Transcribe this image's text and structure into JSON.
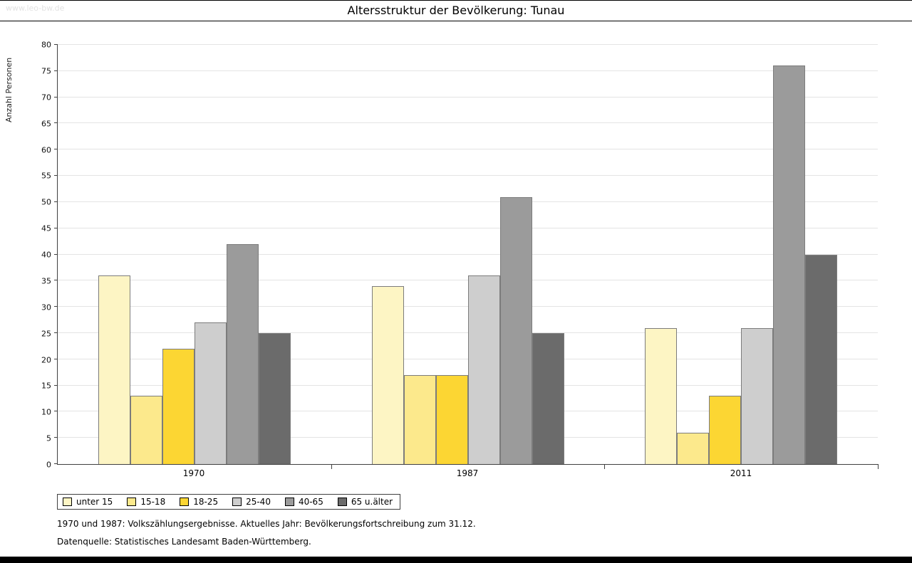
{
  "watermark": "www.leo-bw.de",
  "title": "Altersstruktur der Bevölkerung: Tunau",
  "chart_data": {
    "type": "bar",
    "title": "Altersstruktur der Bevölkerung: Tunau",
    "xlabel": "",
    "ylabel": "Anzahl Personen",
    "ylim": [
      0,
      80
    ],
    "ytick_step": 5,
    "grid": true,
    "legend_position": "bottom-left",
    "categories": [
      "1970",
      "1987",
      "2011"
    ],
    "series": [
      {
        "name": "unter 15",
        "color": "#fdf5c4",
        "values": [
          36,
          34,
          26
        ]
      },
      {
        "name": "15-18",
        "color": "#fce98c",
        "values": [
          13,
          17,
          6
        ]
      },
      {
        "name": "18-25",
        "color": "#fcd633",
        "values": [
          22,
          17,
          13
        ]
      },
      {
        "name": "25-40",
        "color": "#cecece",
        "values": [
          27,
          36,
          26
        ]
      },
      {
        "name": "40-65",
        "color": "#9b9b9b",
        "values": [
          42,
          51,
          76
        ]
      },
      {
        "name": "65 u.älter",
        "color": "#6b6b6b",
        "values": [
          25,
          25,
          40
        ]
      }
    ]
  },
  "footnotes": [
    "1970 und 1987: Volkszählungsergebnisse. Aktuelles Jahr: Bevölkerungsfortschreibung zum 31.12.",
    "Datenquelle: Statistisches Landesamt Baden-Württemberg."
  ]
}
